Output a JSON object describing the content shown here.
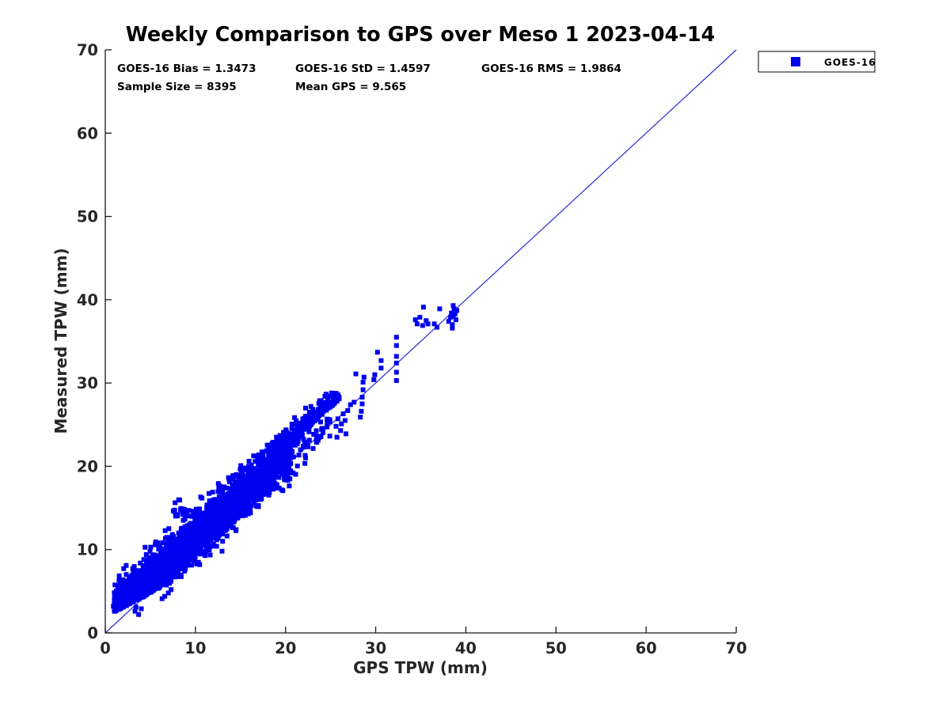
{
  "window": {
    "title": "Weekly Comparison to GPS over Meso 1 2023-04-14"
  },
  "chart_data": {
    "type": "scatter",
    "title": "Weekly Comparison to GPS over Meso 1 2023-04-14",
    "xlabel": "GPS TPW (mm)",
    "ylabel": "Measured TPW (mm)",
    "xlim": [
      0,
      70
    ],
    "ylim": [
      0,
      70
    ],
    "xticks": [
      0,
      10,
      20,
      30,
      40,
      50,
      60,
      70
    ],
    "yticks": [
      0,
      10,
      20,
      30,
      40,
      50,
      60,
      70
    ],
    "grid": false,
    "axis_box": "left-bottom-only",
    "colors": {
      "marker": "#0000f0",
      "reference_line": "#2a2ad2",
      "axis": "#1a1a1a",
      "tick_label": "#262626",
      "background": "#ffffff"
    },
    "stats": {
      "line1": [
        "GOES-16 Bias = 1.3473",
        "GOES-16 StD = 1.4597",
        "GOES-16 RMS = 1.9864"
      ],
      "line2": [
        "Sample Size = 8395",
        "Mean GPS = 9.565"
      ],
      "values": {
        "bias": 1.3473,
        "std": 1.4597,
        "rms": 1.9864,
        "sample_size": 8395,
        "mean_gps": 9.565
      }
    },
    "legend": {
      "position": "outside-top-right",
      "entries": [
        {
          "label": "GOES-16",
          "marker": "square",
          "color": "#0000f0"
        }
      ]
    },
    "reference_line": {
      "from": [
        0,
        0
      ],
      "to": [
        70,
        70
      ],
      "meaning": "1:1 identity line"
    },
    "series": [
      {
        "name": "GOES-16",
        "marker": "square",
        "marker_size_px": 6,
        "n_samples": 8395,
        "relationship": "y approx x + 1.3473, std 1.4597, over x range 1-39.5",
        "cloud_generator": {
          "seed": 20230414,
          "main": {
            "n": 3200,
            "x_min": 1.0,
            "x_span": 19.6,
            "x_pow": 1.25,
            "bias": 1.42,
            "y_std": 1.45,
            "upper_edge": [
              0.85,
              7.1
            ],
            "lower_edge": [
              0.55,
              2.3
            ],
            "y_floor": 1.9
          },
          "arm": {
            "n": 220,
            "x_min": 19.6,
            "x_span": 6.4,
            "offset": 2.1,
            "offset_std": 1.05,
            "offset_cap": 4.9,
            "y_cap": 28.8
          },
          "tail": {
            "n": 60,
            "x_min": 19.8,
            "x_span": 5.2,
            "offset": 0.3,
            "offset_std": 0.9
          },
          "bump": {
            "n": 16,
            "x_min": 7.5,
            "x_span": 1.3,
            "y_min": 13.9,
            "y_span": 2.1
          }
        },
        "sparse_points": [
          [
            25.6,
            24.8
          ],
          [
            25.8,
            25.7
          ],
          [
            26.1,
            24.3
          ],
          [
            26.4,
            26.3
          ],
          [
            26.7,
            23.9
          ],
          [
            26.9,
            26.7
          ],
          [
            27.2,
            27.4
          ],
          [
            27.6,
            27.7
          ],
          [
            26.6,
            25.5
          ],
          [
            25.7,
            23.5
          ],
          [
            26.2,
            25.1
          ],
          [
            28.3,
            25.9
          ],
          [
            28.4,
            26.6
          ],
          [
            28.5,
            27.5
          ],
          [
            28.5,
            28.3
          ],
          [
            28.6,
            29.2
          ],
          [
            28.6,
            30.1
          ],
          [
            28.7,
            30.7
          ],
          [
            27.8,
            31.1
          ],
          [
            29.9,
            31.0
          ],
          [
            29.8,
            30.4
          ],
          [
            30.2,
            33.7
          ],
          [
            30.6,
            32.7
          ],
          [
            30.6,
            31.8
          ],
          [
            32.3,
            35.5
          ],
          [
            32.3,
            34.5
          ],
          [
            32.3,
            33.2
          ],
          [
            32.3,
            32.4
          ],
          [
            32.3,
            31.3
          ],
          [
            32.3,
            30.3
          ],
          [
            34.4,
            37.6
          ],
          [
            34.6,
            37.1
          ],
          [
            34.9,
            37.9
          ],
          [
            35.2,
            36.9
          ],
          [
            35.3,
            39.1
          ],
          [
            35.6,
            37.5
          ],
          [
            35.8,
            37.1
          ],
          [
            36.5,
            37.1
          ],
          [
            36.8,
            36.7
          ],
          [
            37.1,
            38.9
          ],
          [
            38.1,
            37.4
          ],
          [
            38.3,
            37.9
          ],
          [
            38.4,
            38.4
          ],
          [
            38.5,
            37.0
          ],
          [
            38.6,
            38.0
          ],
          [
            38.7,
            38.9
          ],
          [
            38.8,
            38.3
          ],
          [
            38.9,
            37.6
          ],
          [
            39.0,
            38.7
          ],
          [
            38.6,
            39.3
          ],
          [
            38.5,
            36.6
          ],
          [
            0.9,
            3.2
          ],
          [
            3.3,
            2.6
          ],
          [
            3.7,
            2.2
          ],
          [
            4.0,
            2.9
          ],
          [
            3.4,
            3.1
          ],
          [
            6.6,
            4.4
          ],
          [
            7.0,
            4.8
          ],
          [
            6.3,
            4.1
          ],
          [
            7.3,
            5.2
          ]
        ]
      }
    ]
  }
}
